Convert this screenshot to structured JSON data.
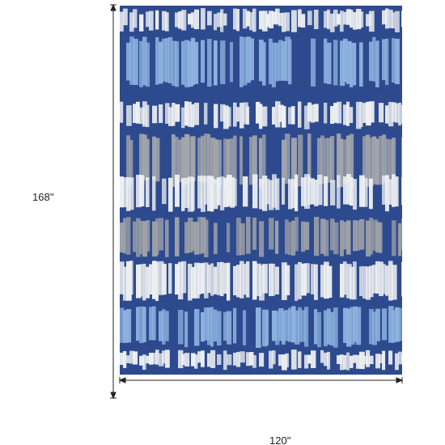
{
  "dimensions": {
    "height": "168''",
    "width": "120''"
  }
}
